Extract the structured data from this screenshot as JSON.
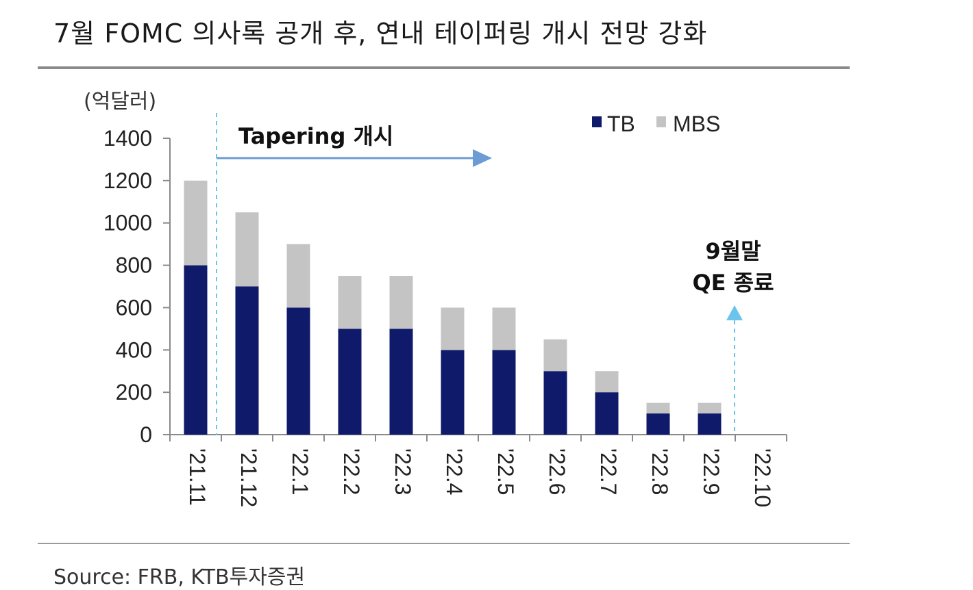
{
  "title": "7월 FOMC 의사록 공개 후, 연내 테이퍼링 개시 전망 강화",
  "source": "Source: FRB, KTB투자증권",
  "chart_data": {
    "type": "bar",
    "stacked": true,
    "ylabel": "(억달러)",
    "ylim": [
      0,
      1400
    ],
    "yticks": [
      0,
      200,
      400,
      600,
      800,
      1000,
      1200,
      1400
    ],
    "categories": [
      "'21.11",
      "'21.12",
      "'22.1",
      "'22.2",
      "'22.3",
      "'22.4",
      "'22.5",
      "'22.6",
      "'22.7",
      "'22.8",
      "'22.9",
      "'22.10"
    ],
    "series": [
      {
        "name": "TB",
        "color": "#0f1a6b",
        "values": [
          800,
          700,
          600,
          500,
          500,
          400,
          400,
          300,
          200,
          100,
          100,
          0
        ]
      },
      {
        "name": "MBS",
        "color": "#c4c4c4",
        "values": [
          400,
          350,
          300,
          250,
          250,
          200,
          200,
          150,
          100,
          50,
          50,
          0
        ]
      }
    ],
    "legend_position": "top-right",
    "annotations": [
      {
        "text": "Tapering 개시",
        "color": "#6c9bd6"
      },
      {
        "lines": [
          "9월말",
          "QE 종료"
        ],
        "color": "#6cc4ec"
      }
    ],
    "grid": false
  }
}
